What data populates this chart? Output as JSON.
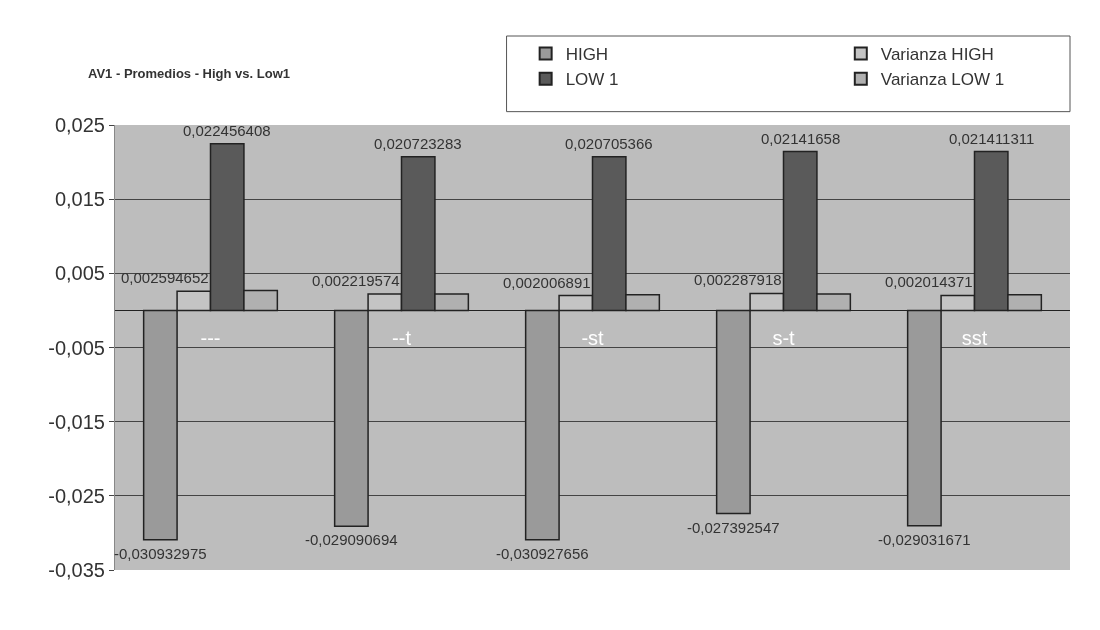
{
  "chart_data": {
    "type": "bar",
    "title": "AV1 - Promedios - High vs. Low1",
    "categories": [
      "---",
      "--t",
      "-st",
      "s-t",
      "sst"
    ],
    "series": [
      {
        "name": "HIGH",
        "color": "#9a9a9a",
        "values": [
          -0.030932975,
          -0.029090694,
          -0.030927656,
          -0.027392547,
          -0.029031671
        ],
        "value_labels": [
          "-0,030932975",
          "-0,029090694",
          "-0,030927656",
          "-0,027392547",
          "-0,029031671"
        ]
      },
      {
        "name": "Varianza HIGH",
        "color": "#c4c4c4",
        "values": [
          0.002594652,
          0.002219574,
          0.002006891,
          0.002287918,
          0.002014371
        ],
        "value_labels": [
          "0,002594652",
          "0,002219574",
          "0,002006891",
          "0,002287918",
          "0,002014371"
        ]
      },
      {
        "name": "LOW 1",
        "color": "#5a5a5a",
        "values": [
          0.022456408,
          0.020723283,
          0.020705366,
          0.02141658,
          0.021411311
        ],
        "value_labels": [
          "0,022456408",
          "0,020723283",
          "0,020705366",
          "0,02141658",
          "0,021411311"
        ]
      },
      {
        "name": "Varianza LOW 1",
        "color": "#b0b0b0",
        "values": [
          0.0027,
          0.0022,
          0.0021,
          0.0022,
          0.0021
        ]
      }
    ],
    "ylim": [
      -0.035,
      0.025
    ],
    "yticks": [
      {
        "value": -0.035,
        "label": "-0,035"
      },
      {
        "value": -0.025,
        "label": "-0,025"
      },
      {
        "value": -0.015,
        "label": "-0,015"
      },
      {
        "value": -0.005,
        "label": "-0,005"
      },
      {
        "value": 0.005,
        "label": "0,005"
      },
      {
        "value": 0.015,
        "label": "0,015"
      },
      {
        "value": 0.025,
        "label": "0,025"
      }
    ],
    "grid": "y",
    "legend": "top right"
  }
}
